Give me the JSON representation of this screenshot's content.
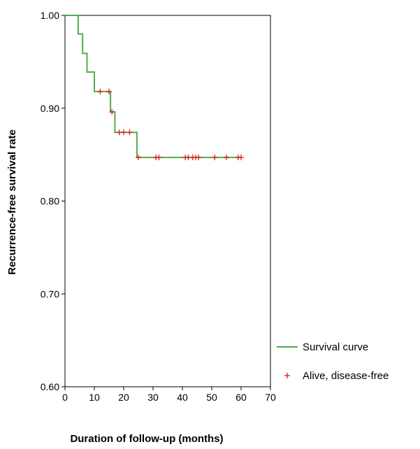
{
  "chart_data": {
    "type": "line",
    "title": "",
    "xlabel": "Duration of follow-up (months)",
    "ylabel": "Recurrence-free survival rate",
    "xlim": [
      0,
      70
    ],
    "ylim": [
      0.6,
      1.0
    ],
    "x_ticks": [
      "0",
      "10",
      "20",
      "30",
      "40",
      "50",
      "60",
      "70"
    ],
    "y_ticks": [
      "0.60",
      "0.70",
      "0.80",
      "0.90",
      "1.00"
    ],
    "grid": false,
    "legend_position": "bottom-right",
    "series": [
      {
        "name": "Survival curve",
        "kind": "step",
        "color": "#4daf4a",
        "x": [
          0,
          4.5,
          6,
          7.5,
          10,
          15.5,
          17,
          24.5,
          60
        ],
        "y": [
          1.0,
          0.98,
          0.959,
          0.939,
          0.918,
          0.896,
          0.874,
          0.847,
          0.847
        ]
      },
      {
        "name": "Alive, disease-free",
        "kind": "censor",
        "color": "#e41a1c",
        "marker": "plus",
        "x": [
          12,
          15,
          16,
          18.5,
          20,
          22,
          25,
          31,
          32,
          41,
          42,
          43.5,
          44.5,
          45.5,
          51,
          55,
          59,
          60
        ],
        "y": [
          0.918,
          0.918,
          0.896,
          0.874,
          0.874,
          0.874,
          0.847,
          0.847,
          0.847,
          0.847,
          0.847,
          0.847,
          0.847,
          0.847,
          0.847,
          0.847,
          0.847,
          0.847
        ]
      }
    ]
  }
}
